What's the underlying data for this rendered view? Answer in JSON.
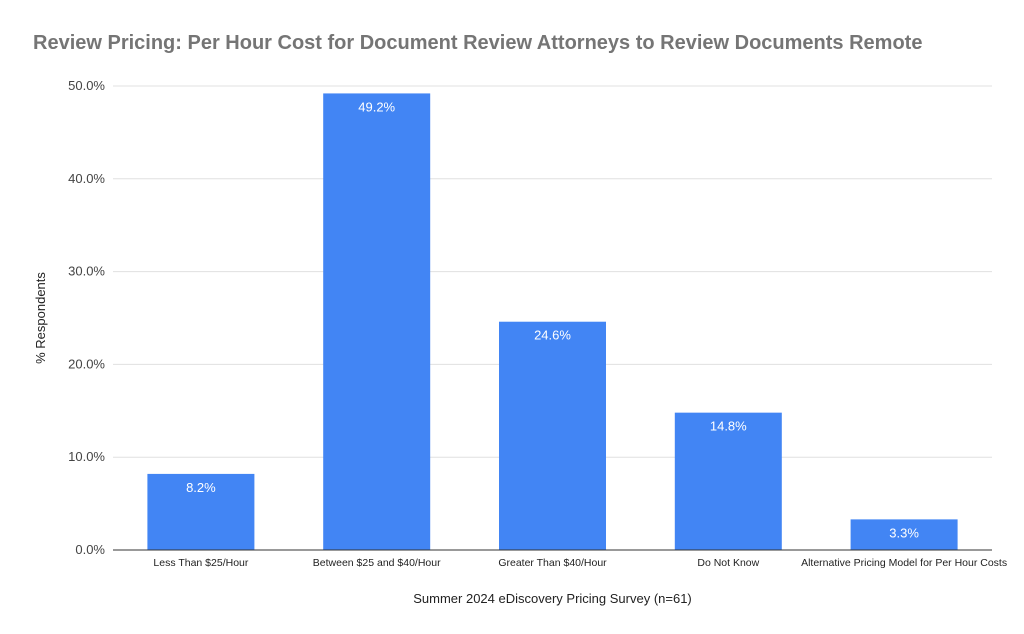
{
  "chart_data": {
    "type": "bar",
    "title": "Review Pricing: Per Hour Cost for Document Review Attorneys to Review Documents Remote",
    "xlabel": "Summer 2024 eDiscovery Pricing Survey (n=61)",
    "ylabel": "% Respondents",
    "categories": [
      "Less Than $25/Hour",
      "Between $25 and $40/Hour",
      "Greater Than $40/Hour",
      "Do Not Know",
      "Alternative Pricing Model for Per Hour Costs"
    ],
    "values": [
      8.2,
      49.2,
      24.6,
      14.8,
      3.3
    ],
    "value_labels": [
      "8.2%",
      "49.2%",
      "24.6%",
      "14.8%",
      "3.3%"
    ],
    "yticks": [
      0,
      10,
      20,
      30,
      40,
      50
    ],
    "ytick_labels": [
      "0.0%",
      "10.0%",
      "20.0%",
      "30.0%",
      "40.0%",
      "50.0%"
    ],
    "ylim": [
      0,
      50
    ],
    "grid": true,
    "bar_color": "#4285f4",
    "grid_color": "#e0e0e0"
  }
}
